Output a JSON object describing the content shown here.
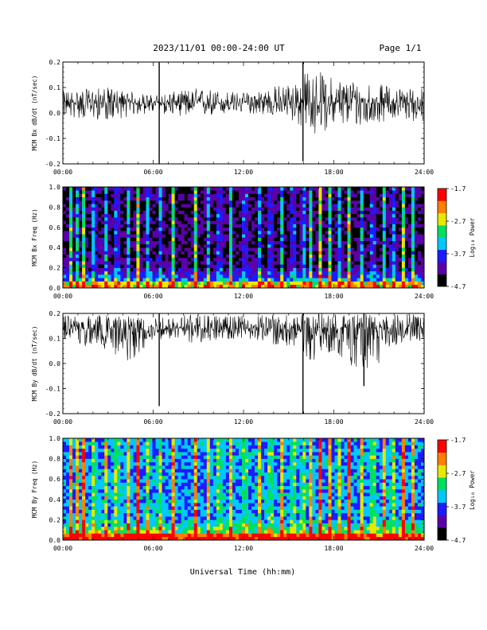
{
  "header": {
    "title": "2023/11/01  00:00-24:00 UT",
    "page": "Page 1/1"
  },
  "xlabel": "Universal Time (hh:mm)",
  "x_ticks": [
    "00:00",
    "06:00",
    "12:00",
    "18:00",
    "24:00"
  ],
  "colorbar": {
    "label": "Log₁₀ Power",
    "ticks": [
      "-1.7",
      "-2.7",
      "-3.7",
      "-4.7"
    ],
    "range": [
      -4.7,
      -1.7
    ],
    "colors": [
      "#000000",
      "#5a00aa",
      "#1b1bff",
      "#00c8ff",
      "#00e060",
      "#e8e800",
      "#ff8000",
      "#ff0000"
    ]
  },
  "chart_data": [
    {
      "type": "line",
      "panel": "bx-derivative",
      "ylabel": "MCM Bx dB/dt (nT/sec)",
      "y_ticks": [
        "0.2",
        "0.1",
        "0.0",
        "-0.1",
        "-0.2"
      ],
      "xlim": [
        0,
        24
      ],
      "ylim": [
        -0.2,
        0.2
      ],
      "baseline": 0.04,
      "envelope": [
        {
          "x": 0,
          "lo": -0.02,
          "hi": 0.09
        },
        {
          "x": 3,
          "lo": -0.03,
          "hi": 0.1
        },
        {
          "x": 6,
          "lo": 0.0,
          "hi": 0.07
        },
        {
          "x": 9,
          "lo": -0.02,
          "hi": 0.1
        },
        {
          "x": 12,
          "lo": 0.0,
          "hi": 0.08
        },
        {
          "x": 15,
          "lo": -0.02,
          "hi": 0.12
        },
        {
          "x": 16.5,
          "lo": -0.1,
          "hi": 0.18
        },
        {
          "x": 18,
          "lo": -0.05,
          "hi": 0.14
        },
        {
          "x": 20,
          "lo": -0.06,
          "hi": 0.13
        },
        {
          "x": 22,
          "lo": -0.02,
          "hi": 0.1
        },
        {
          "x": 24,
          "lo": -0.04,
          "hi": 0.1
        }
      ],
      "spikes": [
        {
          "x": 6.4,
          "lo": -0.2,
          "hi": 0.2
        },
        {
          "x": 15.95,
          "lo": -0.19,
          "hi": 0.2
        }
      ]
    },
    {
      "type": "heatmap",
      "panel": "bx-spectrogram",
      "ylabel": "MCM Bx Freq (Hz)",
      "y_ticks": [
        "1.0",
        "0.8",
        "0.6",
        "0.4",
        "0.2",
        "0.0"
      ],
      "xlim": [
        0,
        24
      ],
      "ylim": [
        0.0,
        1.0
      ],
      "background_level": -4.3,
      "low_freq_level": -3.2,
      "broadband_times": [
        0.5,
        0.9,
        1.4,
        2.1,
        2.8,
        3.6,
        4.3,
        5.0,
        5.7,
        6.4,
        7.3,
        8.8,
        9.6,
        10.4,
        11.2,
        12.1,
        13.0,
        13.8,
        14.6,
        15.3,
        15.95,
        16.5,
        17.1,
        17.7,
        18.3,
        19.0,
        19.8,
        20.6,
        21.3,
        21.9,
        22.6,
        23.3
      ]
    },
    {
      "type": "line",
      "panel": "by-derivative",
      "ylabel": "MCM By dB/dt (nT/sec)",
      "y_ticks": [
        "0.2",
        "0.1",
        "0.0",
        "-0.1",
        "-0.2"
      ],
      "xlim": [
        0,
        24
      ],
      "ylim": [
        -0.2,
        0.2
      ],
      "baseline": 0.14,
      "envelope": [
        {
          "x": 0,
          "lo": 0.08,
          "hi": 0.2
        },
        {
          "x": 3,
          "lo": 0.05,
          "hi": 0.2
        },
        {
          "x": 4.5,
          "lo": 0.0,
          "hi": 0.2
        },
        {
          "x": 6,
          "lo": 0.1,
          "hi": 0.19
        },
        {
          "x": 9,
          "lo": 0.08,
          "hi": 0.2
        },
        {
          "x": 12,
          "lo": 0.1,
          "hi": 0.19
        },
        {
          "x": 15,
          "lo": 0.06,
          "hi": 0.2
        },
        {
          "x": 16.5,
          "lo": 0.0,
          "hi": 0.2
        },
        {
          "x": 18,
          "lo": 0.05,
          "hi": 0.2
        },
        {
          "x": 20,
          "lo": -0.06,
          "hi": 0.2
        },
        {
          "x": 22,
          "lo": 0.06,
          "hi": 0.2
        },
        {
          "x": 24,
          "lo": 0.08,
          "hi": 0.2
        }
      ],
      "spikes": [
        {
          "x": 6.4,
          "lo": -0.17,
          "hi": 0.2
        },
        {
          "x": 15.95,
          "lo": -0.2,
          "hi": 0.2
        },
        {
          "x": 20.0,
          "lo": -0.09,
          "hi": 0.2
        }
      ]
    },
    {
      "type": "heatmap",
      "panel": "by-spectrogram",
      "ylabel": "MCM By Freq (Hz)",
      "y_ticks": [
        "1.0",
        "0.8",
        "0.6",
        "0.4",
        "0.2",
        "0.0"
      ],
      "xlim": [
        0,
        24
      ],
      "ylim": [
        0.0,
        1.0
      ],
      "background_level": -3.5,
      "low_freq_level": -2.6,
      "broadband_times": [
        0.5,
        0.9,
        1.4,
        2.1,
        2.8,
        3.6,
        4.3,
        5.0,
        5.7,
        6.4,
        7.3,
        8.8,
        9.6,
        10.4,
        11.2,
        12.1,
        13.0,
        13.8,
        14.6,
        15.3,
        15.95,
        16.5,
        17.1,
        17.7,
        18.3,
        19.0,
        19.8,
        20.6,
        21.3,
        21.9,
        22.6,
        23.3
      ]
    }
  ]
}
